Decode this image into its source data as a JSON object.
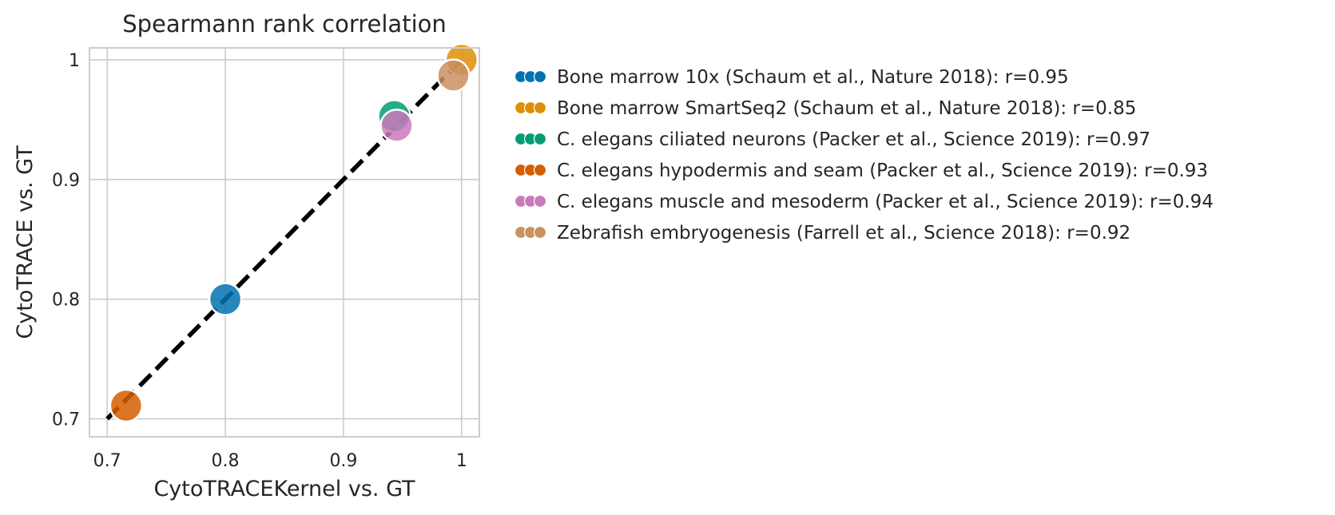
{
  "chart_data": {
    "type": "scatter",
    "title": "Spearmann rank correlation",
    "xlabel": "CytoTRACEKernel vs. GT",
    "ylabel": "CytoTRACE vs. GT",
    "xlim": [
      0.685,
      1.015
    ],
    "ylim": [
      0.685,
      1.01
    ],
    "xticks": [
      0.7,
      0.8,
      0.9,
      1.0
    ],
    "xtick_labels": [
      "0.7",
      "0.8",
      "0.9",
      "1"
    ],
    "yticks": [
      0.7,
      0.8,
      0.9,
      1.0
    ],
    "ytick_labels": [
      "0.7",
      "0.8",
      "0.9",
      "1"
    ],
    "grid": true,
    "diagonal_reference_line": {
      "from": [
        0.7,
        0.7
      ],
      "to": [
        1.0,
        1.0
      ],
      "style": "dashed",
      "color": "#000000"
    },
    "legend_position": "outside-right",
    "series": [
      {
        "name": "Bone marrow 10x (Schaum et al., Nature 2018): r=0.95",
        "color": "#0173b2",
        "x": 0.8,
        "y": 0.8
      },
      {
        "name": "Bone marrow SmartSeq2 (Schaum et al., Nature 2018): r=0.85",
        "color": "#de8f05",
        "x": 1.0,
        "y": 1.0
      },
      {
        "name": "C. elegans ciliated neurons (Packer et al., Science 2019): r=0.97",
        "color": "#029e73",
        "x": 0.943,
        "y": 0.953
      },
      {
        "name": "C. elegans hypodermis and seam (Packer et al., Science 2019): r=0.93",
        "color": "#d55e00",
        "x": 0.716,
        "y": 0.711
      },
      {
        "name": "C. elegans muscle and mesoderm (Packer et al., Science 2019): r=0.94",
        "color": "#cc78bc",
        "x": 0.945,
        "y": 0.945
      },
      {
        "name": "Zebrafish embryogenesis (Farrell et al., Science 2018): r=0.92",
        "color": "#ca9161",
        "x": 0.993,
        "y": 0.987
      }
    ]
  }
}
